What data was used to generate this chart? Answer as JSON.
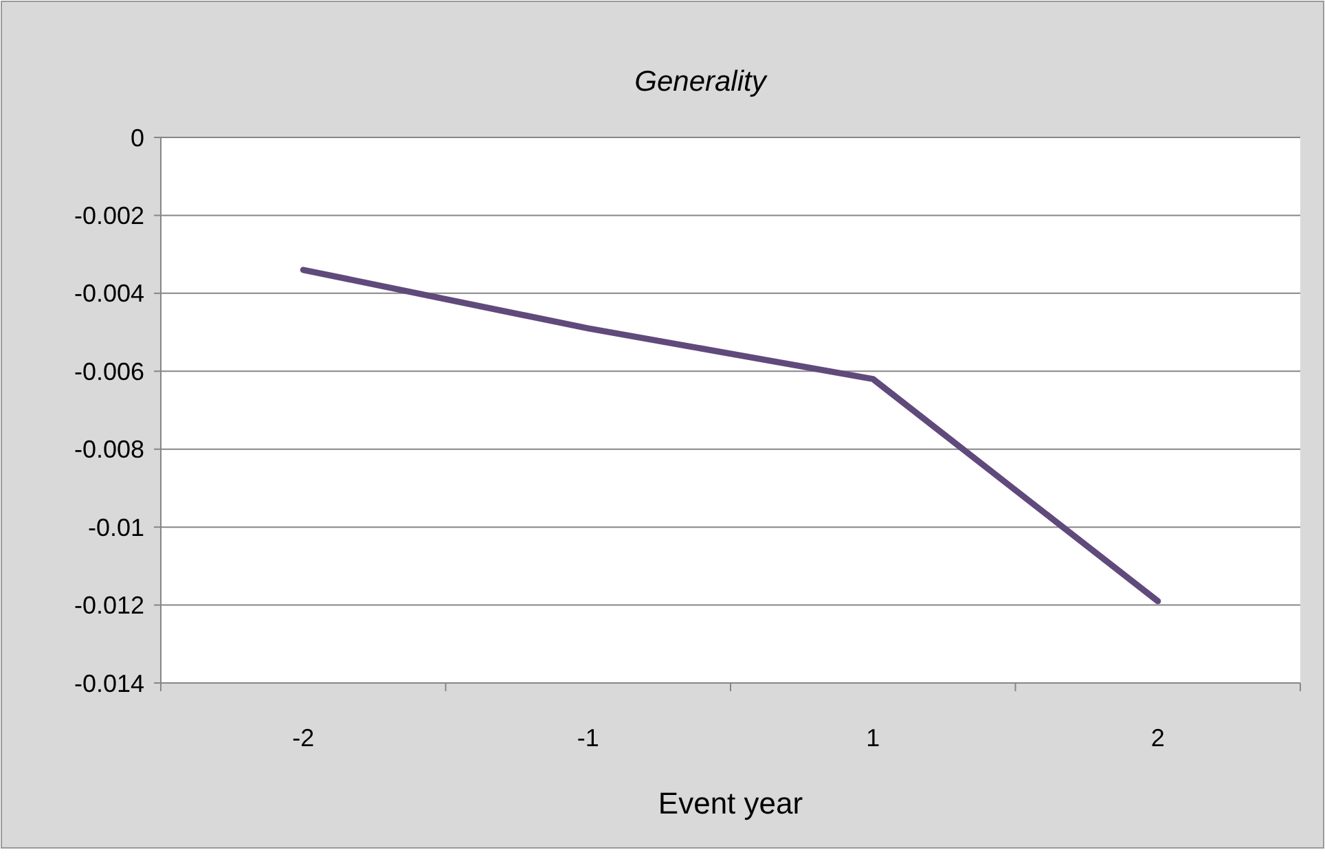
{
  "chart_data": {
    "type": "line",
    "title": "Generality",
    "xlabel": "Event year",
    "categories": [
      "-2",
      "-1",
      "1",
      "2"
    ],
    "series": [
      {
        "color": "#604a7b",
        "values": [
          -0.0034,
          -0.0049,
          -0.0062,
          -0.0119
        ]
      }
    ],
    "ylim": [
      -0.014,
      0
    ],
    "yticks": [
      0,
      -0.002,
      -0.004,
      -0.006,
      -0.008,
      -0.01,
      -0.012,
      -0.014
    ],
    "grid": "y",
    "marker": "none",
    "line_style": "solid"
  }
}
